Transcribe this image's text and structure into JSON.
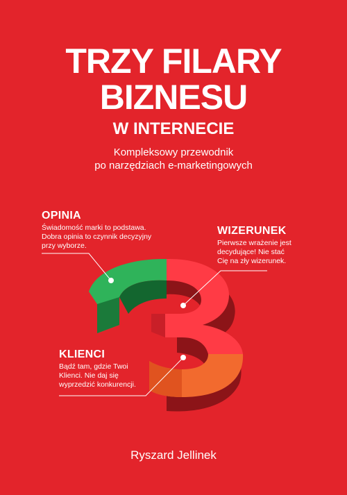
{
  "cover": {
    "title_line1": "TRZY FILARY",
    "title_line2": "BIZNESU",
    "title_line3": "W INTERNECIE",
    "subtitle_line1": "Kompleksowy przewodnik",
    "subtitle_line2": "po narzędziach e-marketingowych",
    "author": "Ryszard Jellinek",
    "background_color": "#e3242b"
  },
  "pillars": {
    "opinia": {
      "label": "OPINIA",
      "line1": "Świadomość marki to podstawa.",
      "line2": "Dobra opinia to czynnik decyzyjny",
      "line3": "przy wyborze.",
      "color": "#2fb35a"
    },
    "wizerunek": {
      "label": "WIZERUNEK",
      "line1": "Pierwsze wrażenie jest",
      "line2": "decydujące! Nie stać",
      "line3": "Cię na zły wizerunek.",
      "color": "#ff3b45"
    },
    "klienci": {
      "label": "KLIENCI",
      "line1": "Bądź tam, gdzie Twoi",
      "line2": "Klienci. Nie daj się",
      "line3": "wyprzedzić konkurencji.",
      "color": "#f26a2e"
    }
  }
}
